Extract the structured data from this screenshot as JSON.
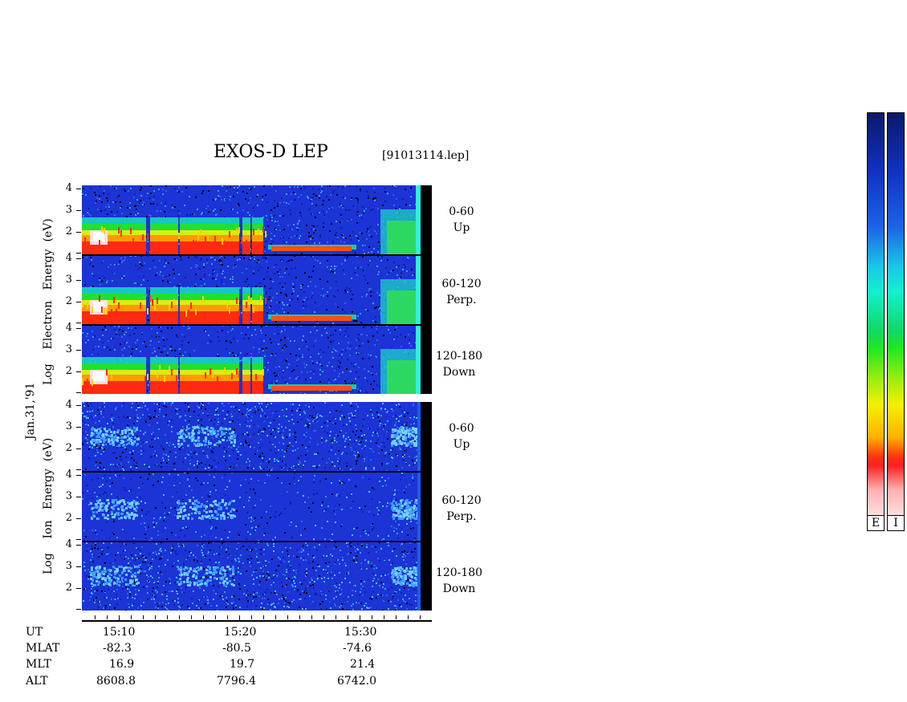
{
  "header": {
    "title": "EXOS-D LEP",
    "file": "[91013114.lep]"
  },
  "date_label": "Jan.31,'91",
  "electron": {
    "ylabel_parts": [
      "Log",
      "Electron",
      "Energy",
      "(eV)"
    ],
    "panels": [
      {
        "label_line1": "0-60",
        "label_line2": "Up"
      },
      {
        "label_line1": "60-120",
        "label_line2": "Perp."
      },
      {
        "label_line1": "120-180",
        "label_line2": "Down"
      }
    ]
  },
  "ion": {
    "ylabel_parts": [
      "Log",
      "Ion",
      "Energy",
      "(eV)"
    ],
    "panels": [
      {
        "label_line1": "0-60",
        "label_line2": "Up"
      },
      {
        "label_line1": "60-120",
        "label_line2": "Perp."
      },
      {
        "label_line1": "120-180",
        "label_line2": "Down"
      }
    ]
  },
  "y_ticks": [
    "4",
    "3",
    "2"
  ],
  "orbit_table": {
    "row_labels": [
      "UT",
      "MLAT",
      "MLT",
      "ALT"
    ],
    "columns": [
      {
        "UT": "15:10",
        "MLAT": "-82.3",
        "MLT": "16.9",
        "ALT": "8608.8"
      },
      {
        "UT": "15:20",
        "MLAT": "-80.5",
        "MLT": "19.7",
        "ALT": "7796.4"
      },
      {
        "UT": "15:30",
        "MLAT": "-74.6",
        "MLT": "21.4",
        "ALT": "6742.0"
      }
    ]
  },
  "colorbars": [
    {
      "label": "E"
    },
    {
      "label": "I"
    }
  ],
  "colors": {
    "background_blue": "#1c33d6",
    "ion_bright": "#3ea4ff"
  },
  "chart_data": {
    "type": "heatmap",
    "title": "EXOS-D LEP",
    "subtitle": "[91013114.lep]",
    "xlabel": "UT",
    "x_ticks": [
      "15:10",
      "15:20",
      "15:30"
    ],
    "ylabel": "Log Energy (eV)",
    "y_range": [
      1,
      4
    ],
    "y_tick_labels": [
      "2",
      "3",
      "4"
    ],
    "grid": false,
    "series": [
      {
        "name": "Electron 0-60 Up"
      },
      {
        "name": "Electron 60-120 Perp."
      },
      {
        "name": "Electron 120-180 Down"
      },
      {
        "name": "Ion 0-60 Up"
      },
      {
        "name": "Ion 60-120 Perp."
      },
      {
        "name": "Ion 120-180 Down"
      }
    ]
  }
}
